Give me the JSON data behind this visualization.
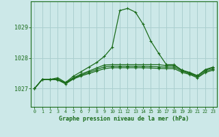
{
  "title": "Graphe pression niveau de la mer (hPa)",
  "bg_color": "#cce8e8",
  "grid_color": "#aacfcf",
  "line_color": "#1a6b1a",
  "x_labels": [
    "0",
    "1",
    "2",
    "3",
    "4",
    "5",
    "6",
    "7",
    "8",
    "9",
    "10",
    "11",
    "12",
    "13",
    "14",
    "15",
    "16",
    "17",
    "18",
    "19",
    "20",
    "21",
    "22",
    "23"
  ],
  "yticks": [
    1027,
    1028,
    1029
  ],
  "ylim": [
    1026.4,
    1029.85
  ],
  "xlim": [
    -0.5,
    23.5
  ],
  "series": [
    [
      1027.0,
      1027.3,
      1027.3,
      1027.35,
      1027.2,
      1027.4,
      1027.55,
      1027.7,
      1027.85,
      1028.05,
      1028.35,
      1029.55,
      1029.62,
      1029.5,
      1029.1,
      1028.55,
      1028.15,
      1027.78,
      1027.78,
      1027.6,
      1027.5,
      1027.42,
      1027.62,
      1027.7
    ],
    [
      1027.0,
      1027.3,
      1027.3,
      1027.3,
      1027.18,
      1027.35,
      1027.47,
      1027.57,
      1027.67,
      1027.77,
      1027.78,
      1027.78,
      1027.78,
      1027.78,
      1027.78,
      1027.78,
      1027.78,
      1027.75,
      1027.75,
      1027.6,
      1027.53,
      1027.42,
      1027.6,
      1027.68
    ],
    [
      1027.0,
      1027.3,
      1027.3,
      1027.3,
      1027.18,
      1027.33,
      1027.44,
      1027.53,
      1027.62,
      1027.71,
      1027.73,
      1027.73,
      1027.73,
      1027.73,
      1027.73,
      1027.72,
      1027.71,
      1027.7,
      1027.7,
      1027.57,
      1027.49,
      1027.38,
      1027.56,
      1027.64
    ],
    [
      1027.0,
      1027.3,
      1027.3,
      1027.28,
      1027.15,
      1027.31,
      1027.41,
      1027.49,
      1027.57,
      1027.65,
      1027.68,
      1027.68,
      1027.68,
      1027.68,
      1027.68,
      1027.67,
      1027.66,
      1027.65,
      1027.65,
      1027.53,
      1027.46,
      1027.35,
      1027.52,
      1027.6
    ]
  ]
}
